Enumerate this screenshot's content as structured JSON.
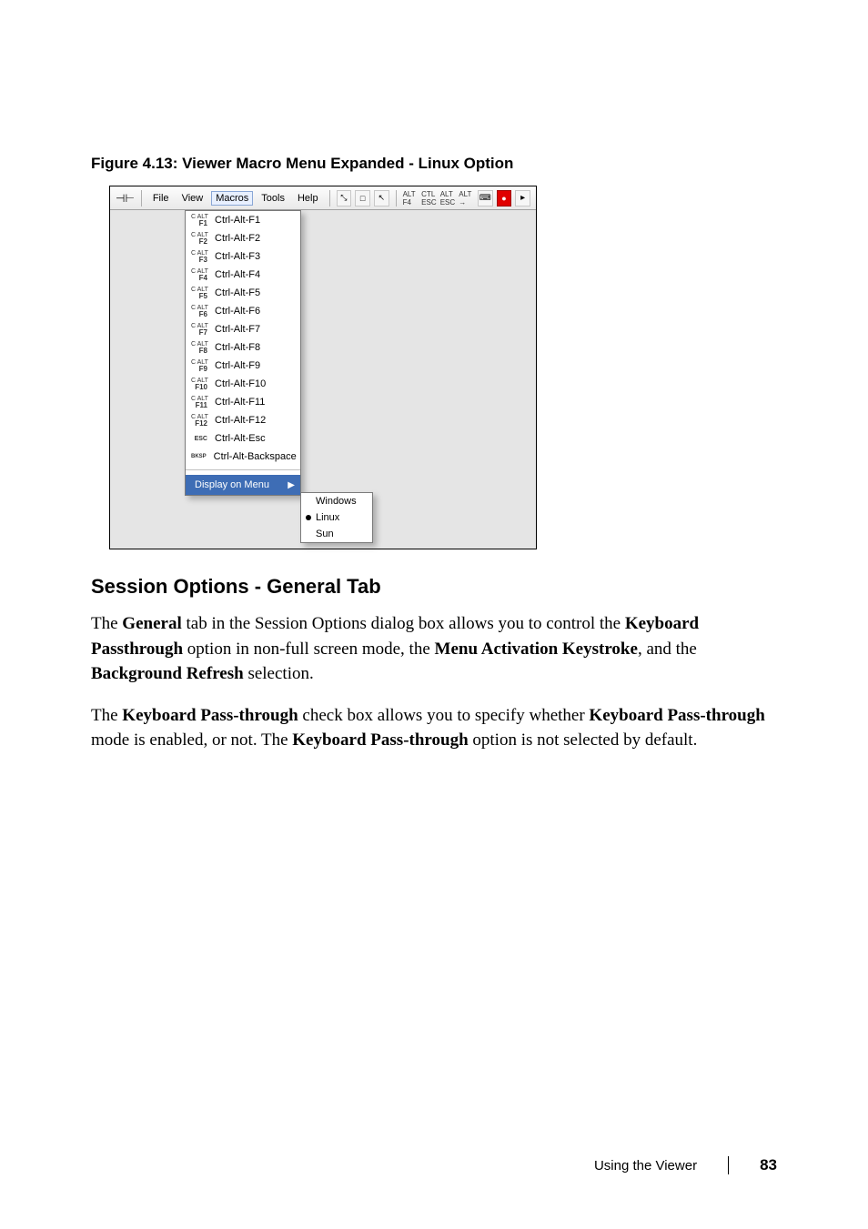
{
  "figure_caption": "Figure 4.13: Viewer Macro Menu Expanded - Linux Option",
  "screenshot": {
    "menubar": {
      "pin_glyph": "⊣⊢",
      "items": [
        "File",
        "View",
        "Macros",
        "Tools",
        "Help"
      ],
      "selected_index": 2
    },
    "toolbar_icons": {
      "group1": [
        "⤡",
        "□",
        "↖"
      ],
      "group2": [
        "ALT F4",
        "CTL ESC",
        "ALT ESC",
        "ALT →"
      ],
      "group3_keyboard": "⌨",
      "group3_red": "●",
      "right": "▸"
    },
    "macro_items": [
      {
        "key": "F1",
        "label": "Ctrl-Alt-F1"
      },
      {
        "key": "F2",
        "label": "Ctrl-Alt-F2"
      },
      {
        "key": "F3",
        "label": "Ctrl-Alt-F3"
      },
      {
        "key": "F4",
        "label": "Ctrl-Alt-F4"
      },
      {
        "key": "F5",
        "label": "Ctrl-Alt-F5"
      },
      {
        "key": "F6",
        "label": "Ctrl-Alt-F6"
      },
      {
        "key": "F7",
        "label": "Ctrl-Alt-F7"
      },
      {
        "key": "F8",
        "label": "Ctrl-Alt-F8"
      },
      {
        "key": "F9",
        "label": "Ctrl-Alt-F9"
      },
      {
        "key": "F10",
        "label": "Ctrl-Alt-F10"
      },
      {
        "key": "F11",
        "label": "Ctrl-Alt-F11"
      },
      {
        "key": "F12",
        "label": "Ctrl-Alt-F12"
      },
      {
        "key": "ESC",
        "label": "Ctrl-Alt-Esc"
      },
      {
        "key": "BKSP",
        "label": "Ctrl-Alt-Backspace"
      }
    ],
    "display_on_menu": {
      "label": "Display on Menu",
      "caret": "▶"
    },
    "submenu": {
      "items": [
        "Windows",
        "Linux",
        "Sun"
      ],
      "selected_index": 1
    },
    "key_prefix_small": "C ALT",
    "colors": {
      "toolbar_bg_top": "#fdfdfd",
      "toolbar_bg_bot": "#e9e9e9",
      "dropdown_border": "#7a7a7a",
      "highlight_bg": "#3e6db5",
      "highlight_fg": "#ffffff"
    }
  },
  "section_heading": "Session Options - General Tab",
  "para1": {
    "t1": "The ",
    "b1": "General",
    "t2": " tab in the Session Options dialog box allows you to control the ",
    "b2": "Keyboard Passthrough",
    "t3": " option in non-full screen mode, the ",
    "b3": "Menu Activation Keystroke",
    "t4": ", and the ",
    "b4": "Background Refresh",
    "t5": " selection."
  },
  "para2": {
    "t1": "The ",
    "b1": "Keyboard Pass-through",
    "t2": " check box allows you to specify whether ",
    "b2": "Keyboard Pass-through",
    "t3": " mode is enabled, or not. The ",
    "b3": "Keyboard Pass-through",
    "t4": " option is not selected by default."
  },
  "footer": {
    "label": "Using the Viewer",
    "page": "83"
  }
}
